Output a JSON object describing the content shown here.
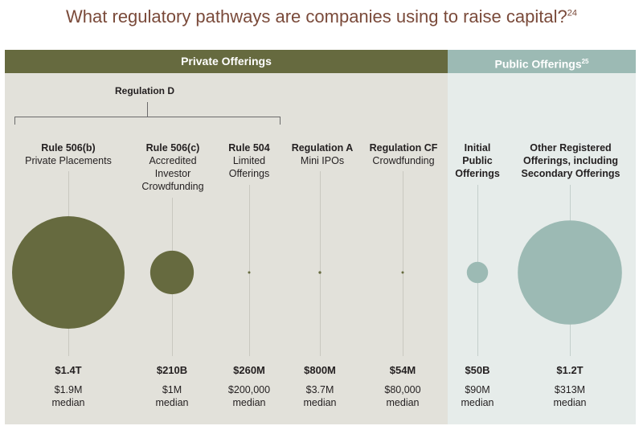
{
  "title": "What regulatory pathways are companies using to raise capital?",
  "title_footnote": "24",
  "headers": {
    "private": "Private Offerings",
    "public": "Public Offerings",
    "public_footnote": "25"
  },
  "regulation_d_label": "Regulation D",
  "colors": {
    "private": "#666a3f",
    "public": "#9cbab4",
    "title": "#7a4a3a"
  },
  "columns": [
    {
      "title": "Rule 506(b)",
      "subtitle": [
        "Private Placements"
      ],
      "amount": "$1.4T",
      "median_value": "$1.9M",
      "median_label": "median"
    },
    {
      "title": "Rule 506(c)",
      "subtitle": [
        "Accredited",
        "Investor",
        "Crowdfunding"
      ],
      "amount": "$210B",
      "median_value": "$1M",
      "median_label": "median"
    },
    {
      "title": "Rule 504",
      "subtitle": [
        "Limited",
        "Offerings"
      ],
      "amount": "$260M",
      "median_value": "$200,000",
      "median_label": "median"
    },
    {
      "title": "Regulation A",
      "subtitle": [
        "Mini IPOs"
      ],
      "amount": "$800M",
      "median_value": "$3.7M",
      "median_label": "median"
    },
    {
      "title": "Regulation CF",
      "subtitle": [
        "Crowdfunding"
      ],
      "amount": "$54M",
      "median_value": "$80,000",
      "median_label": "median"
    },
    {
      "title": "Initial",
      "subtitle": [
        "Public",
        "Offerings"
      ],
      "amount": "$50B",
      "median_value": "$90M",
      "median_label": "median"
    },
    {
      "title": "Other Registered",
      "subtitle": [
        "Offerings, including",
        "Secondary Offerings"
      ],
      "amount": "$1.2T",
      "median_value": "$313M",
      "median_label": "median"
    }
  ],
  "chart_data": {
    "type": "scatter",
    "title": "What regulatory pathways are companies using to raise capital?",
    "groups": [
      {
        "name": "Private Offerings",
        "members": [
          "Rule 506(b)",
          "Rule 506(c)",
          "Rule 504",
          "Regulation A",
          "Regulation CF"
        ]
      },
      {
        "name": "Public Offerings",
        "members": [
          "Initial Public Offerings",
          "Other Registered Offerings, including Secondary Offerings"
        ]
      }
    ],
    "categories": [
      "Rule 506(b)",
      "Rule 506(c)",
      "Rule 504",
      "Regulation A",
      "Regulation CF",
      "Initial Public Offerings",
      "Other Registered Offerings, including Secondary Offerings"
    ],
    "amount_raised_usd": [
      1400000000000,
      210000000000,
      260000000,
      800000000,
      54000000,
      50000000000,
      1200000000000
    ],
    "median_offering_usd": [
      1900000,
      1000000,
      200000,
      3700000,
      80000,
      90000000,
      313000000
    ],
    "encoding": "bubble area proportional to amount raised"
  }
}
